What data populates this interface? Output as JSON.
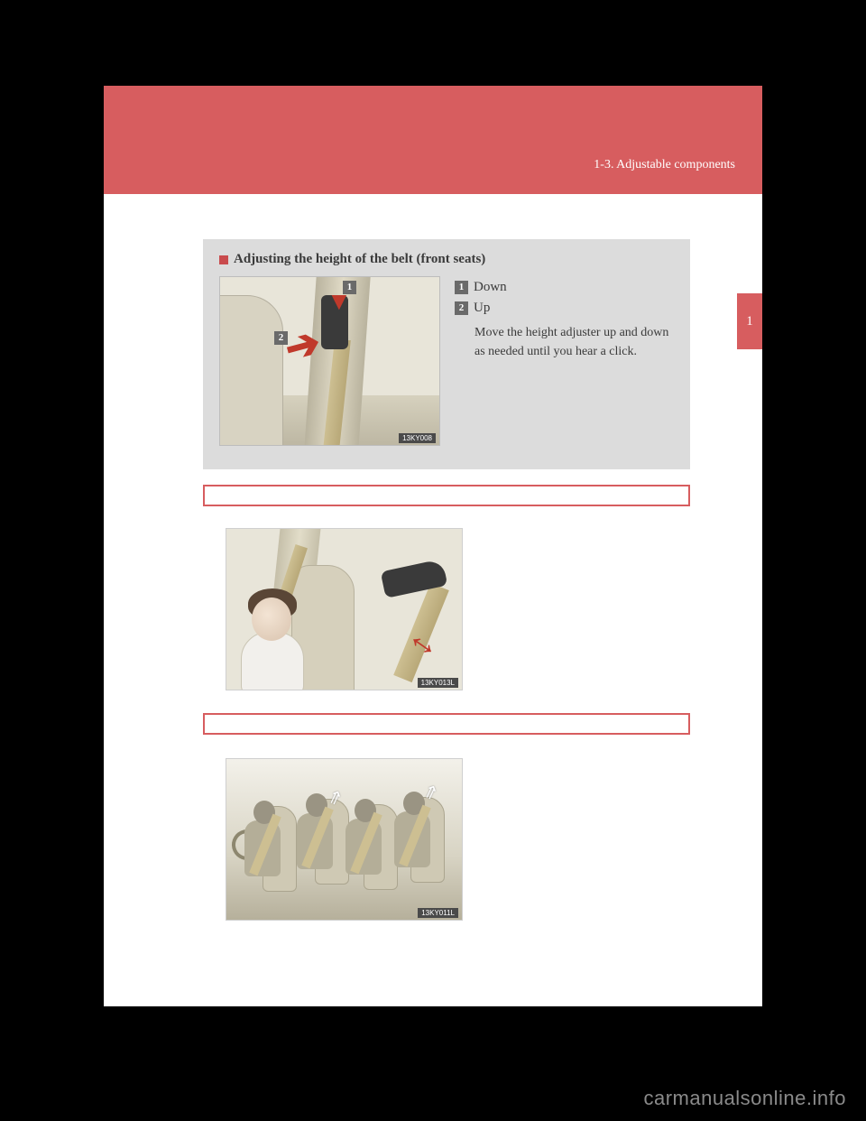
{
  "header": {
    "section_label": "1-3. Adjustable components"
  },
  "side_tab": {
    "number": "1"
  },
  "panel1": {
    "title": "Adjusting the height of the belt (front seats)",
    "option1": "Down",
    "option2": "Up",
    "description": "Move the height adjuster up and down as needed until you hear a click.",
    "marker1": "1",
    "marker2": "2",
    "image_code": "13KY008"
  },
  "diagram2": {
    "image_code": "13KY013L"
  },
  "diagram3": {
    "image_code": "13KY011L"
  },
  "watermark": "carmanualsonline.info",
  "colors": {
    "brand": "#d75d5f",
    "panel_bg": "#dcdcdc",
    "diagram_bg": "#e8e5d9",
    "arrow_red": "#c0392b",
    "belt": "#cdbf92"
  }
}
